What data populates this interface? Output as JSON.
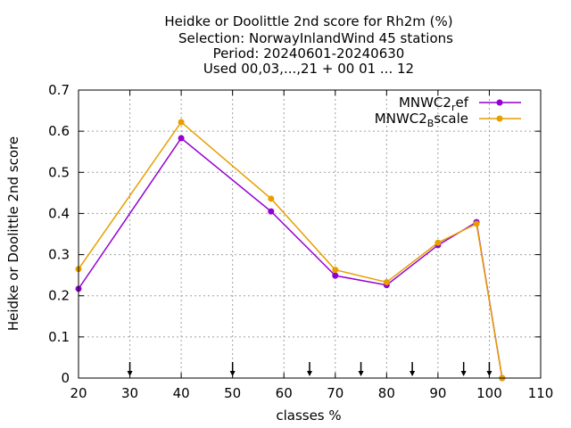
{
  "chart_data": {
    "type": "line",
    "title_lines": [
      "Heidke or Doolittle 2nd score  for Rh2m (%)",
      "Selection: NorwayInlandWind     45 stations",
      "Period: 20240601-20240630",
      "Used 00,03,...,21 + 00 01 ... 12"
    ],
    "xlabel": "classes %",
    "ylabel": "Heidke or Doolittle 2nd score",
    "xlim": [
      20,
      110
    ],
    "ylim": [
      0,
      0.7
    ],
    "xticks": [
      20,
      30,
      40,
      50,
      60,
      70,
      80,
      90,
      100,
      110
    ],
    "yticks": [
      0,
      0.1,
      0.2,
      0.3,
      0.4,
      0.5,
      0.6,
      0.7
    ],
    "xtick_labels": [
      "20",
      "30",
      "40",
      "50",
      "60",
      "70",
      "80",
      "90",
      "100",
      "110"
    ],
    "ytick_labels": [
      "0",
      "0.1",
      "0.2",
      "0.3",
      "0.4",
      "0.5",
      "0.6",
      "0.7"
    ],
    "grid": true,
    "legend_position": "top-right",
    "arrow_markers_x": [
      30,
      50,
      65,
      75,
      85,
      95,
      100
    ],
    "series": [
      {
        "legend_main": "MNWC2",
        "legend_sub": "r",
        "legend_tail": "ef",
        "color": "#9400d3",
        "x": [
          20,
          40,
          57.5,
          70,
          80,
          90,
          97.5,
          102.5
        ],
        "y": [
          0.217,
          0.583,
          0.405,
          0.249,
          0.226,
          0.323,
          0.379,
          0.0
        ]
      },
      {
        "legend_main": "MNWC2",
        "legend_sub": "B",
        "legend_tail": "scale",
        "color": "#e69f00",
        "x": [
          20,
          40,
          57.5,
          70,
          80,
          90,
          97.5,
          102.5
        ],
        "y": [
          0.265,
          0.622,
          0.436,
          0.263,
          0.233,
          0.329,
          0.375,
          0.0
        ]
      }
    ]
  }
}
